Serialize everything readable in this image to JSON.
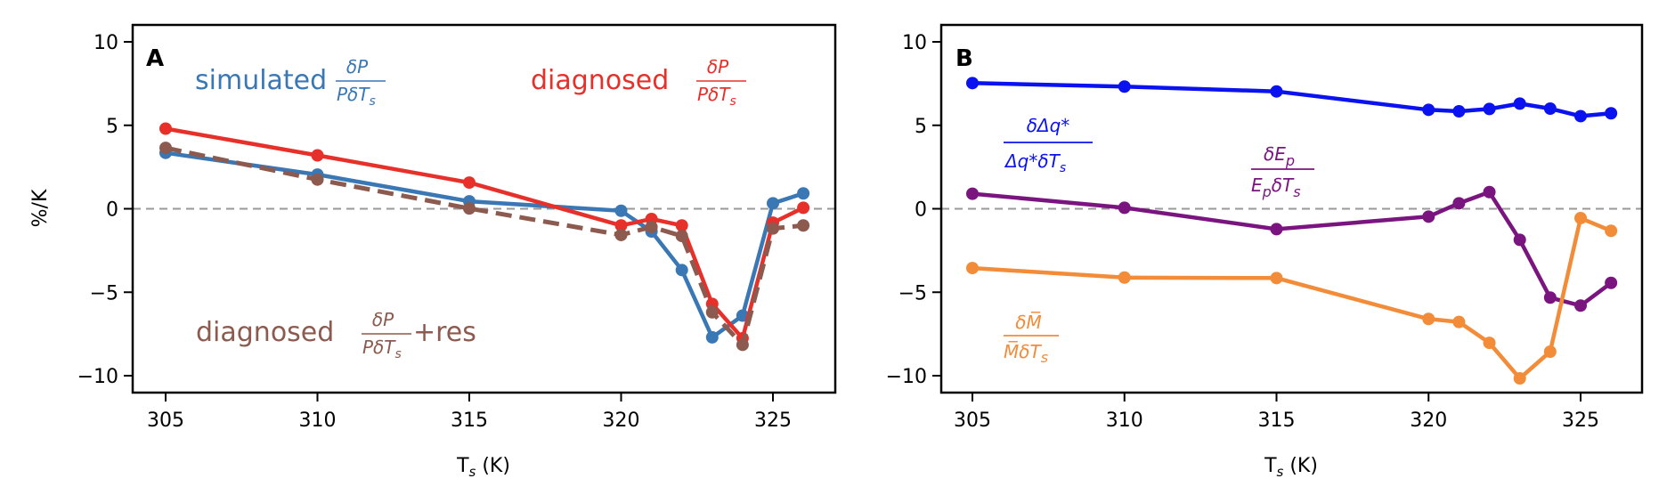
{
  "chart_data": [
    {
      "type": "line",
      "panel": "A",
      "title": "",
      "xlabel": "T_s (K)",
      "ylabel": "%/K",
      "xlim": [
        304,
        327.3
      ],
      "ylim": [
        -11,
        11
      ],
      "xticks": [
        305,
        310,
        315,
        320,
        325
      ],
      "yticks": [
        -10,
        -5,
        0,
        5,
        10
      ],
      "ytick_labels": [
        "−10",
        "−5",
        "0",
        "5",
        "10"
      ],
      "zero_line": true,
      "grid": false,
      "x": [
        305,
        310,
        315,
        320,
        321,
        322,
        323,
        324,
        325,
        326
      ],
      "series": [
        {
          "name": "simulated δP/(PδT_s)",
          "color": "#3a77b5",
          "style": "solid",
          "values": [
            3.35,
            2.05,
            0.45,
            -0.12,
            -1.36,
            -3.67,
            -7.7,
            -6.4,
            0.33,
            0.92
          ]
        },
        {
          "name": "diagnosed δP/(PδT_s)",
          "color": "#e8302a",
          "style": "solid",
          "values": [
            4.8,
            3.2,
            1.57,
            -1.0,
            -0.61,
            -1.0,
            -5.7,
            -7.76,
            -0.83,
            0.06
          ]
        },
        {
          "name": "diagnosed δP/(PδT_s)+res",
          "color": "#8c5a4e",
          "style": "dashed",
          "values": [
            3.65,
            1.75,
            0.02,
            -1.57,
            -1.09,
            -1.63,
            -6.2,
            -8.15,
            -1.18,
            -1.0
          ]
        }
      ],
      "annotations": [
        {
          "text": "simulated",
          "frac_num": "δP",
          "frac_den": "PδT",
          "frac_den_sub": "s",
          "suffix": "",
          "color": "#3a77b5"
        },
        {
          "text": "diagnosed",
          "frac_num": "δP",
          "frac_den": "PδT",
          "frac_den_sub": "s",
          "suffix": "",
          "color": "#e8302a"
        },
        {
          "text": "diagnosed",
          "frac_num": "δP",
          "frac_den": "PδT",
          "frac_den_sub": "s",
          "suffix": "+res",
          "color": "#8c5a4e"
        }
      ]
    },
    {
      "type": "line",
      "panel": "B",
      "title": "",
      "xlabel": "T_s (K)",
      "ylabel": "",
      "xlim": [
        304,
        327.3
      ],
      "ylim": [
        -11,
        11
      ],
      "xticks": [
        305,
        310,
        315,
        320,
        325
      ],
      "yticks": [
        -10,
        -5,
        0,
        5,
        10
      ],
      "ytick_labels": [
        "−10",
        "−5",
        "0",
        "5",
        "10"
      ],
      "zero_line": true,
      "grid": false,
      "x": [
        305,
        310,
        315,
        320,
        321,
        322,
        323,
        324,
        325,
        326
      ],
      "series": [
        {
          "name": "δΔq*/(Δq*δT_s)",
          "color": "#0a12f0",
          "style": "solid",
          "values": [
            7.53,
            7.32,
            7.03,
            5.93,
            5.84,
            5.98,
            6.3,
            6.0,
            5.55,
            5.72
          ]
        },
        {
          "name": "δE_p/(E_pδT_s)",
          "color": "#7a1580",
          "style": "solid",
          "values": [
            0.9,
            0.06,
            -1.22,
            -0.47,
            0.33,
            1.0,
            -1.86,
            -5.32,
            -5.8,
            -4.44
          ]
        },
        {
          "name": "δM̄/(M̄δT_s)",
          "color": "#f28c38",
          "style": "solid",
          "values": [
            -3.55,
            -4.12,
            -4.15,
            -6.6,
            -6.78,
            -8.03,
            -10.16,
            -8.56,
            -0.56,
            -1.32
          ]
        }
      ],
      "annotations": [
        {
          "frac_num": "δΔq*",
          "frac_den": "Δq*δT",
          "frac_den_sub": "s",
          "color": "#0a12f0"
        },
        {
          "frac_num": "δE",
          "frac_num_sub": "p",
          "frac_den": "E",
          "frac_den_mid_sub": "p",
          "frac_den_tail": "δT",
          "frac_den_sub": "s",
          "color": "#7a1580"
        },
        {
          "frac_num": "δM̅",
          "frac_den": "M̅δT",
          "frac_den_sub": "s",
          "color": "#f28c38"
        }
      ]
    }
  ],
  "panels": {
    "a_letter": "A",
    "b_letter": "B"
  }
}
